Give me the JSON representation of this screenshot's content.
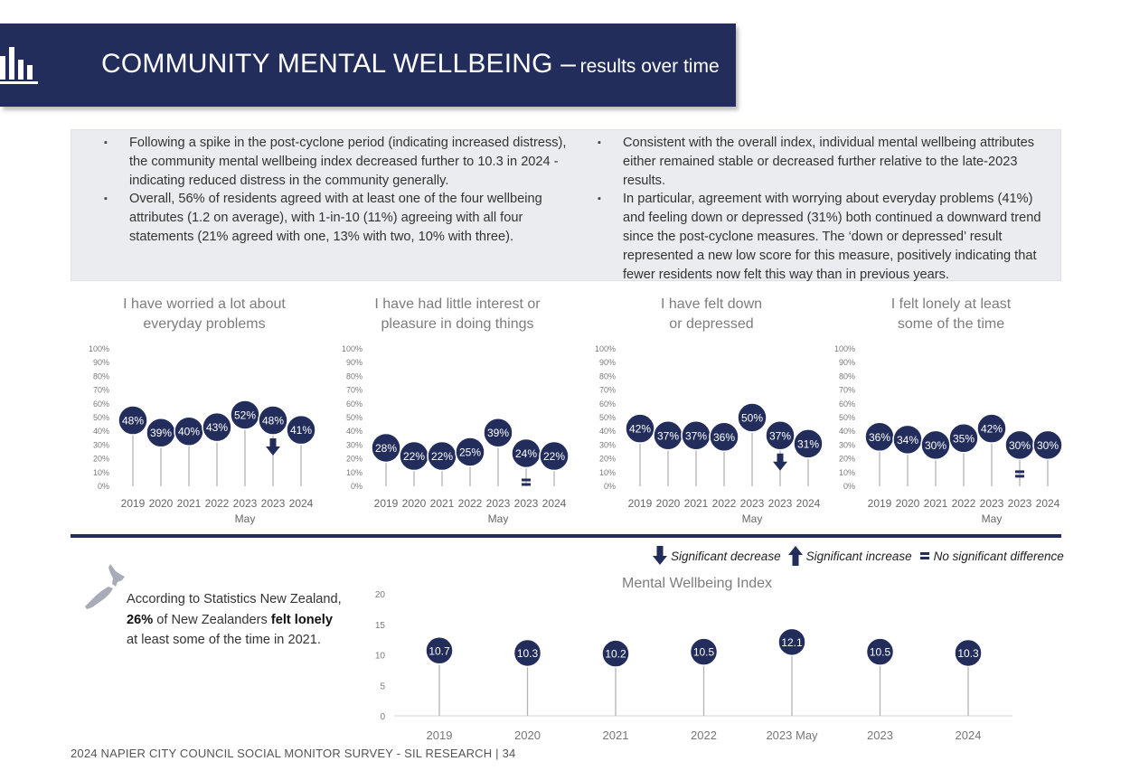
{
  "header": {
    "title_main": "COMMUNITY MENTAL WELLBEING –",
    "title_sub": "results over time",
    "icon": "bar-chart-icon"
  },
  "summary": {
    "left_bullets": [
      "Following a spike in the post-cyclone period (indicating increased distress), the community mental wellbeing index decreased further to 10.3 in 2024 - indicating reduced distress in the community generally.",
      "Overall, 56% of residents agreed with at least one of the four wellbeing attributes (1.2 on average), with 1-in-10 (11%) agreeing with all four statements (21% agreed with one, 13% with two, 10% with three)."
    ],
    "right_bullets": [
      "Consistent with the overall index, individual mental wellbeing attributes either remained stable or decreased further relative to the late-2023 results.",
      "In particular, agreement with worrying about everyday problems (41%) and feeling down or depressed (31%) both continued a downward trend since the post-cyclone measures. The ‘down or depressed’ result represented a new low score for this measure, positively indicating that fewer residents now felt this way than in previous years."
    ]
  },
  "colors": {
    "navy": "#232d5b",
    "panel_bg": "#eaecf0",
    "stem": "#b4b4b4",
    "axis_text": "#7a7a7a",
    "title_text": "#7d7d7d"
  },
  "legend": {
    "decrease": "Significant decrease",
    "increase": "Significant increase",
    "no_diff": "No significant difference",
    "decrease_icon": "arrow-down-icon",
    "increase_icon": "arrow-up-icon",
    "no_diff_icon": "equals-icon"
  },
  "nz_note": {
    "icon": "new-zealand-map-icon",
    "pre": "According to Statistics New Zealand,",
    "pct": "26%",
    "mid": "of New Zealanders",
    "bold": "felt lonely",
    "post": "at least some of the time in 2021."
  },
  "footer": "2024 NAPIER CITY COUNCIL SOCIAL MONITOR SURVEY - SIL RESEARCH | 34",
  "chart_data": [
    {
      "type": "lollipop",
      "title_lines": [
        "I have worried a lot about",
        "everyday problems"
      ],
      "categories": [
        "2019",
        "2020",
        "2021",
        "2022",
        "2023",
        "2023",
        "2024"
      ],
      "sublabel": {
        "index": 4,
        "text": "May"
      },
      "values": [
        48,
        39,
        40,
        43,
        52,
        48,
        41
      ],
      "value_labels": [
        "48%",
        "39%",
        "40%",
        "43%",
        "52%",
        "48%",
        "41%"
      ],
      "yticks": [
        "0%",
        "10%",
        "20%",
        "30%",
        "40%",
        "50%",
        "60%",
        "70%",
        "80%",
        "90%",
        "100%"
      ],
      "ylim": [
        0,
        100
      ],
      "marker": "down",
      "marker_index": 5
    },
    {
      "type": "lollipop",
      "title_lines": [
        "I have had little interest or",
        "pleasure in doing things"
      ],
      "categories": [
        "2019",
        "2020",
        "2021",
        "2022",
        "2023",
        "2023",
        "2024"
      ],
      "sublabel": {
        "index": 4,
        "text": "May"
      },
      "values": [
        28,
        22,
        22,
        25,
        39,
        24,
        22
      ],
      "value_labels": [
        "28%",
        "22%",
        "22%",
        "25%",
        "39%",
        "24%",
        "22%"
      ],
      "yticks": [
        "0%",
        "10%",
        "20%",
        "30%",
        "40%",
        "50%",
        "60%",
        "70%",
        "80%",
        "90%",
        "100%"
      ],
      "ylim": [
        0,
        100
      ],
      "marker": "equal",
      "marker_index": 5
    },
    {
      "type": "lollipop",
      "title_lines": [
        "I have felt down",
        "or depressed"
      ],
      "categories": [
        "2019",
        "2020",
        "2021",
        "2022",
        "2023",
        "2023",
        "2024"
      ],
      "sublabel": {
        "index": 4,
        "text": "May"
      },
      "values": [
        42,
        37,
        37,
        36,
        50,
        37,
        31
      ],
      "value_labels": [
        "42%",
        "37%",
        "37%",
        "36%",
        "50%",
        "37%",
        "31%"
      ],
      "yticks": [
        "0%",
        "10%",
        "20%",
        "30%",
        "40%",
        "50%",
        "60%",
        "70%",
        "80%",
        "90%",
        "100%"
      ],
      "ylim": [
        0,
        100
      ],
      "marker": "down",
      "marker_index": 5
    },
    {
      "type": "lollipop",
      "title_lines": [
        "I felt lonely at least",
        "some of the time"
      ],
      "categories": [
        "2019",
        "2020",
        "2021",
        "2022",
        "2023",
        "2023",
        "2024"
      ],
      "sublabel": {
        "index": 4,
        "text": "May"
      },
      "values": [
        36,
        34,
        30,
        35,
        42,
        30,
        30
      ],
      "value_labels": [
        "36%",
        "34%",
        "30%",
        "35%",
        "42%",
        "30%",
        "30%"
      ],
      "yticks": [
        "0%",
        "10%",
        "20%",
        "30%",
        "40%",
        "50%",
        "60%",
        "70%",
        "80%",
        "90%",
        "100%"
      ],
      "ylim": [
        0,
        100
      ],
      "marker": "equal",
      "marker_index": 5
    },
    {
      "type": "lollipop",
      "title_lines": [
        "Mental Wellbeing Index"
      ],
      "categories": [
        "2019",
        "2020",
        "2021",
        "2022",
        "2023 May",
        "2023",
        "2024"
      ],
      "values": [
        10.7,
        10.3,
        10.2,
        10.5,
        12.1,
        10.5,
        10.3
      ],
      "value_labels": [
        "10.7",
        "10.3",
        "10.2",
        "10.5",
        "12.1",
        "10.5",
        "10.3"
      ],
      "yticks": [
        "0",
        "5",
        "10",
        "15",
        "20"
      ],
      "ylim": [
        0,
        20
      ]
    }
  ]
}
